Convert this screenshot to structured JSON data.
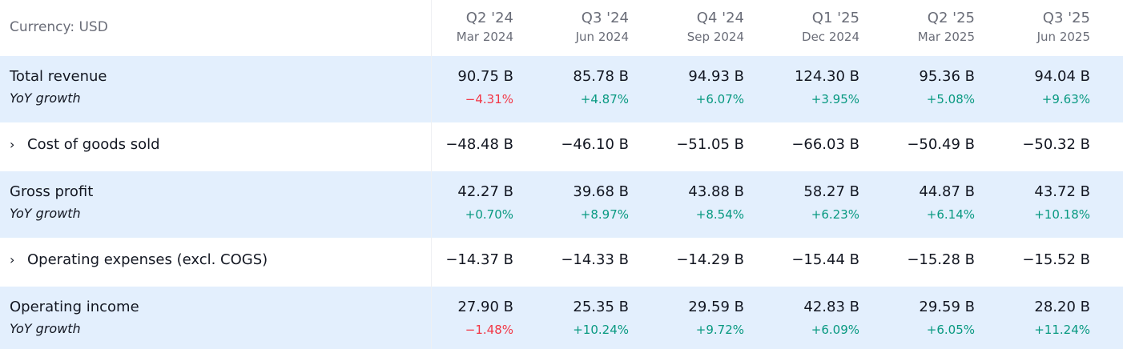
{
  "currency_label": "Currency: USD",
  "periods": [
    {
      "q": "Q2 '24",
      "d": "Mar 2024"
    },
    {
      "q": "Q3 '24",
      "d": "Jun 2024"
    },
    {
      "q": "Q4 '24",
      "d": "Sep 2024"
    },
    {
      "q": "Q1 '25",
      "d": "Dec 2024"
    },
    {
      "q": "Q2 '25",
      "d": "Mar 2025"
    },
    {
      "q": "Q3 '25",
      "d": "Jun 2025"
    }
  ],
  "rows": [
    {
      "label": "Total revenue",
      "expandable": false,
      "highlight": true,
      "values": [
        "90.75 B",
        "85.78 B",
        "94.93 B",
        "124.30 B",
        "95.36 B",
        "94.04 B"
      ],
      "sub_label": "YoY growth",
      "growth": [
        "−4.31%",
        "+4.87%",
        "+6.07%",
        "+3.95%",
        "+5.08%",
        "+9.63%"
      ]
    },
    {
      "label": "Cost of goods sold",
      "expandable": true,
      "highlight": false,
      "values": [
        "−48.48 B",
        "−46.10 B",
        "−51.05 B",
        "−66.03 B",
        "−50.49 B",
        "−50.32 B"
      ]
    },
    {
      "label": "Gross profit",
      "expandable": false,
      "highlight": true,
      "values": [
        "42.27 B",
        "39.68 B",
        "43.88 B",
        "58.27 B",
        "44.87 B",
        "43.72 B"
      ],
      "sub_label": "YoY growth",
      "growth": [
        "+0.70%",
        "+8.97%",
        "+8.54%",
        "+6.23%",
        "+6.14%",
        "+10.18%"
      ]
    },
    {
      "label": "Operating expenses (excl. COGS)",
      "expandable": true,
      "highlight": false,
      "values": [
        "−14.37 B",
        "−14.33 B",
        "−14.29 B",
        "−15.44 B",
        "−15.28 B",
        "−15.52 B"
      ]
    },
    {
      "label": "Operating income",
      "expandable": false,
      "highlight": true,
      "values": [
        "27.90 B",
        "25.35 B",
        "29.59 B",
        "42.83 B",
        "29.59 B",
        "28.20 B"
      ],
      "sub_label": "YoY growth",
      "growth": [
        "−1.48%",
        "+10.24%",
        "+9.72%",
        "+6.09%",
        "+6.05%",
        "+11.24%"
      ]
    }
  ],
  "colors": {
    "positive": "#089981",
    "negative": "#f23645",
    "highlight_bg": "#e3effd"
  },
  "icons": {
    "expand": "chevron-right-icon"
  }
}
